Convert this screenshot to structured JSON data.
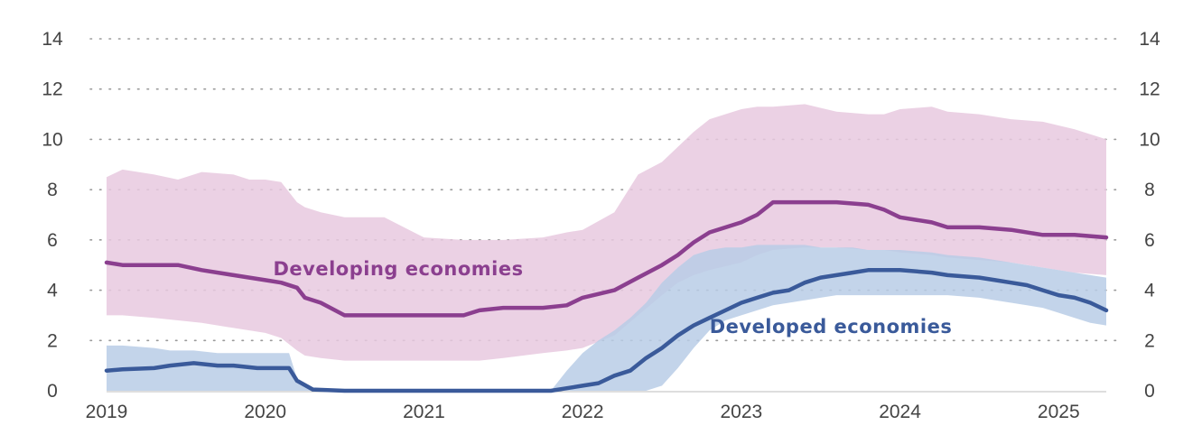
{
  "chart_data": {
    "type": "area",
    "title": "",
    "xlabel": "",
    "ylabel": "",
    "xlim": [
      2019.0,
      2025.3
    ],
    "ylim": [
      0,
      14
    ],
    "y_ticks": [
      0,
      2,
      4,
      6,
      8,
      10,
      12,
      14
    ],
    "x_ticks": [
      "2019",
      "2020",
      "2021",
      "2022",
      "2023",
      "2024",
      "2025"
    ],
    "grid": "horizontal dotted",
    "axes": "y-axis labels on both left and right",
    "series": [
      {
        "name": "Developing economies",
        "color": "#8b3f8f",
        "band_color": "#e8c9df",
        "x": [
          2019.0,
          2019.1,
          2019.3,
          2019.45,
          2019.6,
          2019.8,
          2019.9,
          2020.0,
          2020.1,
          2020.2,
          2020.25,
          2020.35,
          2020.5,
          2020.75,
          2021.0,
          2021.25,
          2021.35,
          2021.5,
          2021.75,
          2021.9,
          2022.0,
          2022.2,
          2022.35,
          2022.5,
          2022.6,
          2022.7,
          2022.8,
          2023.0,
          2023.1,
          2023.2,
          2023.4,
          2023.6,
          2023.8,
          2023.9,
          2024.0,
          2024.2,
          2024.3,
          2024.5,
          2024.7,
          2024.9,
          2025.1,
          2025.3
        ],
        "y": [
          5.1,
          5.0,
          5.0,
          5.0,
          4.8,
          4.6,
          4.5,
          4.4,
          4.3,
          4.1,
          3.7,
          3.5,
          3.0,
          3.0,
          3.0,
          3.0,
          3.2,
          3.3,
          3.3,
          3.4,
          3.7,
          4.0,
          4.5,
          5.0,
          5.4,
          5.9,
          6.3,
          6.7,
          7.0,
          7.5,
          7.5,
          7.5,
          7.4,
          7.2,
          6.9,
          6.7,
          6.5,
          6.5,
          6.4,
          6.2,
          6.2,
          6.1
        ],
        "upper": [
          8.5,
          8.8,
          8.6,
          8.4,
          8.7,
          8.6,
          8.4,
          8.4,
          8.3,
          7.5,
          7.3,
          7.1,
          6.9,
          6.9,
          6.1,
          6.0,
          6.0,
          6.0,
          6.1,
          6.3,
          6.4,
          7.1,
          8.6,
          9.1,
          9.7,
          10.3,
          10.8,
          11.2,
          11.3,
          11.3,
          11.4,
          11.1,
          11.0,
          11.0,
          11.2,
          11.3,
          11.1,
          11.0,
          10.8,
          10.7,
          10.4,
          10.0
        ],
        "lower": [
          3.0,
          3.0,
          2.9,
          2.8,
          2.7,
          2.5,
          2.4,
          2.3,
          2.1,
          1.6,
          1.4,
          1.3,
          1.2,
          1.2,
          1.2,
          1.2,
          1.2,
          1.3,
          1.5,
          1.6,
          1.7,
          2.2,
          3.0,
          3.8,
          4.3,
          4.6,
          4.8,
          5.1,
          5.4,
          5.6,
          5.7,
          5.7,
          5.6,
          5.6,
          5.5,
          5.4,
          5.3,
          5.2,
          5.1,
          4.9,
          4.7,
          4.6
        ]
      },
      {
        "name": "Developed economies",
        "color": "#3a5a9a",
        "band_color": "#b9cde6",
        "x": [
          2019.0,
          2019.1,
          2019.3,
          2019.4,
          2019.55,
          2019.7,
          2019.8,
          2019.95,
          2020.1,
          2020.15,
          2020.2,
          2020.3,
          2020.5,
          2021.0,
          2021.5,
          2021.8,
          2021.9,
          2022.0,
          2022.1,
          2022.2,
          2022.3,
          2022.4,
          2022.5,
          2022.6,
          2022.7,
          2022.8,
          2022.9,
          2023.0,
          2023.1,
          2023.2,
          2023.3,
          2023.4,
          2023.5,
          2023.6,
          2023.7,
          2023.8,
          2024.0,
          2024.2,
          2024.3,
          2024.5,
          2024.6,
          2024.7,
          2024.8,
          2024.9,
          2025.0,
          2025.1,
          2025.2,
          2025.3
        ],
        "y": [
          0.8,
          0.85,
          0.9,
          1.0,
          1.1,
          1.0,
          1.0,
          0.9,
          0.9,
          0.9,
          0.4,
          0.05,
          0.0,
          0.0,
          0.0,
          0.0,
          0.1,
          0.2,
          0.3,
          0.6,
          0.8,
          1.3,
          1.7,
          2.2,
          2.6,
          2.9,
          3.2,
          3.5,
          3.7,
          3.9,
          4.0,
          4.3,
          4.5,
          4.6,
          4.7,
          4.8,
          4.8,
          4.7,
          4.6,
          4.5,
          4.4,
          4.3,
          4.2,
          4.0,
          3.8,
          3.7,
          3.5,
          3.2
        ],
        "upper": [
          1.8,
          1.8,
          1.7,
          1.6,
          1.6,
          1.5,
          1.5,
          1.5,
          1.5,
          1.5,
          0.5,
          0.0,
          0.0,
          0.0,
          0.0,
          0.0,
          0.8,
          1.5,
          2.0,
          2.4,
          2.9,
          3.5,
          4.3,
          4.9,
          5.4,
          5.6,
          5.7,
          5.7,
          5.8,
          5.8,
          5.8,
          5.8,
          5.7,
          5.7,
          5.7,
          5.6,
          5.6,
          5.5,
          5.4,
          5.3,
          5.2,
          5.1,
          5.0,
          4.9,
          4.8,
          4.7,
          4.6,
          4.5
        ],
        "lower": [
          0.0,
          0.0,
          0.0,
          0.0,
          0.0,
          0.0,
          0.0,
          0.0,
          0.0,
          0.0,
          0.0,
          0.0,
          0.0,
          0.0,
          0.0,
          0.0,
          0.0,
          0.0,
          0.0,
          0.0,
          0.0,
          0.0,
          0.2,
          0.9,
          1.7,
          2.4,
          2.8,
          3.0,
          3.2,
          3.4,
          3.5,
          3.6,
          3.7,
          3.8,
          3.8,
          3.8,
          3.8,
          3.8,
          3.8,
          3.7,
          3.6,
          3.5,
          3.4,
          3.3,
          3.1,
          2.9,
          2.7,
          2.6
        ]
      }
    ],
    "annotations": [
      {
        "text": "Developing economies",
        "series": "Developing economies",
        "x": 2020.05,
        "y": 4.6
      },
      {
        "text": "Developed economies",
        "series": "Developed economies",
        "x": 2022.8,
        "y": 2.3
      }
    ]
  }
}
